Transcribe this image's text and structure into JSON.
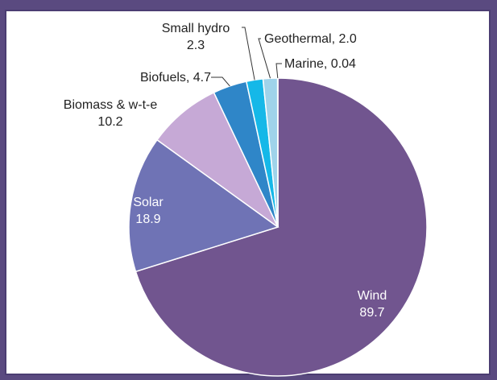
{
  "colors": {
    "background": "#5a4a80",
    "panel": "#ffffff",
    "slice_stroke": "#ffffff"
  },
  "chart_data": {
    "type": "pie",
    "title": "",
    "slices": [
      {
        "name": "Wind",
        "value": 89.7,
        "color": "#71558f",
        "label_name": "Wind",
        "label_value": "89.7"
      },
      {
        "name": "Solar",
        "value": 18.9,
        "color": "#6f73b5",
        "label_name": "Solar",
        "label_value": "18.9"
      },
      {
        "name": "Biomass & w-t-e",
        "value": 10.2,
        "color": "#c6a9d6",
        "label_name": "Biomass & w-t-e",
        "label_value": "10.2"
      },
      {
        "name": "Biofuels",
        "value": 4.7,
        "color": "#2f86c8",
        "label_name": "Biofuels, 4.7",
        "label_value": ""
      },
      {
        "name": "Small hydro",
        "value": 2.3,
        "color": "#15b8e8",
        "label_name": "Small hydro",
        "label_value": "2.3"
      },
      {
        "name": "Geothermal",
        "value": 2.0,
        "color": "#9fd3ea",
        "label_name": "Geothermal, 2.0",
        "label_value": ""
      },
      {
        "name": "Marine",
        "value": 0.04,
        "color": "#6b83c0",
        "label_name": "Marine, 0.04",
        "label_value": ""
      }
    ]
  }
}
